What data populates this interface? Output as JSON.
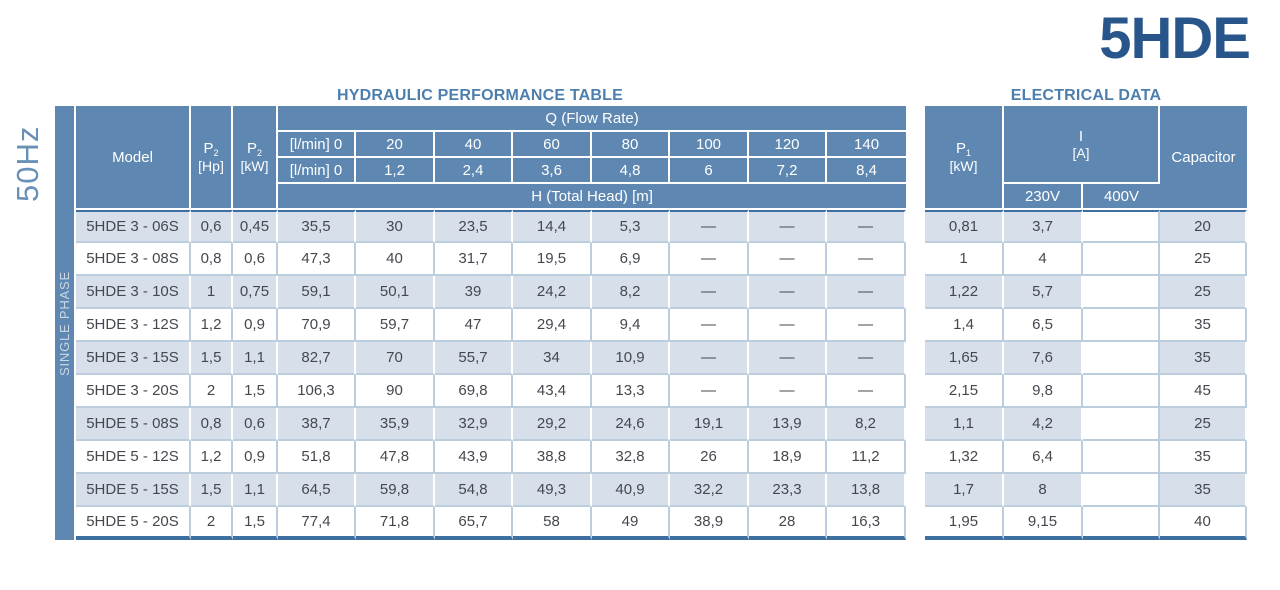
{
  "page": {
    "product_title": "5HDE",
    "frequency_label": "50Hz",
    "phase_label": "SINGLE PHASE"
  },
  "hydraulic": {
    "title": "HYDRAULIC PERFORMANCE TABLE",
    "header": {
      "model": "Model",
      "p2_symbol": "P",
      "p2_sub": "2",
      "p2_hp_unit": "[Hp]",
      "p2_kw_unit": "[kW]",
      "q_banner": "Q (Flow Rate)",
      "flow_lmin_label": "[l/min] 0",
      "flow_lmin_values": [
        "20",
        "40",
        "60",
        "80",
        "100",
        "120",
        "140"
      ],
      "flow_m3h_label": "[l/min] 0",
      "flow_m3h_values": [
        "1,2",
        "2,4",
        "3,6",
        "4,8",
        "6",
        "7,2",
        "8,4"
      ],
      "h_banner": "H (Total Head) [m]"
    }
  },
  "electrical": {
    "title": "ELECTRICAL DATA",
    "header": {
      "p1_symbol": "P",
      "p1_sub": "1",
      "p1_unit": "[kW]",
      "i_symbol": "I",
      "i_unit": "[A]",
      "v230": "230V",
      "v400": "400V",
      "capacitor": "Capacitor"
    }
  },
  "rows": [
    {
      "model": "5HDE 3 - 06S",
      "p2_hp": "0,6",
      "p2_kw": "0,45",
      "head": [
        "35,5",
        "30",
        "23,5",
        "14,4",
        "5,3",
        "—",
        "—",
        "—"
      ],
      "p1_kw": "0,81",
      "i_230": "3,7",
      "i_400": "",
      "capacitor": "20"
    },
    {
      "model": "5HDE 3 - 08S",
      "p2_hp": "0,8",
      "p2_kw": "0,6",
      "head": [
        "47,3",
        "40",
        "31,7",
        "19,5",
        "6,9",
        "—",
        "—",
        "—"
      ],
      "p1_kw": "1",
      "i_230": "4",
      "i_400": "",
      "capacitor": "25"
    },
    {
      "model": "5HDE 3 - 10S",
      "p2_hp": "1",
      "p2_kw": "0,75",
      "head": [
        "59,1",
        "50,1",
        "39",
        "24,2",
        "8,2",
        "—",
        "—",
        "—"
      ],
      "p1_kw": "1,22",
      "i_230": "5,7",
      "i_400": "",
      "capacitor": "25"
    },
    {
      "model": "5HDE 3 - 12S",
      "p2_hp": "1,2",
      "p2_kw": "0,9",
      "head": [
        "70,9",
        "59,7",
        "47",
        "29,4",
        "9,4",
        "—",
        "—",
        "—"
      ],
      "p1_kw": "1,4",
      "i_230": "6,5",
      "i_400": "",
      "capacitor": "35"
    },
    {
      "model": "5HDE 3 - 15S",
      "p2_hp": "1,5",
      "p2_kw": "1,1",
      "head": [
        "82,7",
        "70",
        "55,7",
        "34",
        "10,9",
        "—",
        "—",
        "—"
      ],
      "p1_kw": "1,65",
      "i_230": "7,6",
      "i_400": "",
      "capacitor": "35"
    },
    {
      "model": "5HDE 3 - 20S",
      "p2_hp": "2",
      "p2_kw": "1,5",
      "head": [
        "106,3",
        "90",
        "69,8",
        "43,4",
        "13,3",
        "—",
        "—",
        "—"
      ],
      "p1_kw": "2,15",
      "i_230": "9,8",
      "i_400": "",
      "capacitor": "45"
    },
    {
      "model": "5HDE 5 - 08S",
      "p2_hp": "0,8",
      "p2_kw": "0,6",
      "head": [
        "38,7",
        "35,9",
        "32,9",
        "29,2",
        "24,6",
        "19,1",
        "13,9",
        "8,2"
      ],
      "p1_kw": "1,1",
      "i_230": "4,2",
      "i_400": "",
      "capacitor": "25"
    },
    {
      "model": "5HDE 5 - 12S",
      "p2_hp": "1,2",
      "p2_kw": "0,9",
      "head": [
        "51,8",
        "47,8",
        "43,9",
        "38,8",
        "32,8",
        "26",
        "18,9",
        "11,2"
      ],
      "p1_kw": "1,32",
      "i_230": "6,4",
      "i_400": "",
      "capacitor": "35"
    },
    {
      "model": "5HDE 5 - 15S",
      "p2_hp": "1,5",
      "p2_kw": "1,1",
      "head": [
        "64,5",
        "59,8",
        "54,8",
        "49,3",
        "40,9",
        "32,2",
        "23,3",
        "13,8"
      ],
      "p1_kw": "1,7",
      "i_230": "8",
      "i_400": "",
      "capacitor": "35"
    },
    {
      "model": "5HDE 5 - 20S",
      "p2_hp": "2",
      "p2_kw": "1,5",
      "head": [
        "77,4",
        "71,8",
        "65,7",
        "58",
        "49",
        "38,9",
        "28",
        "16,3"
      ],
      "p1_kw": "1,95",
      "i_230": "9,15",
      "i_400": "",
      "capacitor": "40"
    }
  ],
  "colors": {
    "header_blue": "#5e88b1",
    "row_light": "#d7e0ea",
    "border_light": "#bccddd",
    "accent_dark": "#3d70a1",
    "title_navy": "#29568a",
    "section_title_blue": "#4d7fae",
    "band_text": "#c9d8e6",
    "frequency_text": "#6991b7",
    "data_text": "#44484e"
  }
}
